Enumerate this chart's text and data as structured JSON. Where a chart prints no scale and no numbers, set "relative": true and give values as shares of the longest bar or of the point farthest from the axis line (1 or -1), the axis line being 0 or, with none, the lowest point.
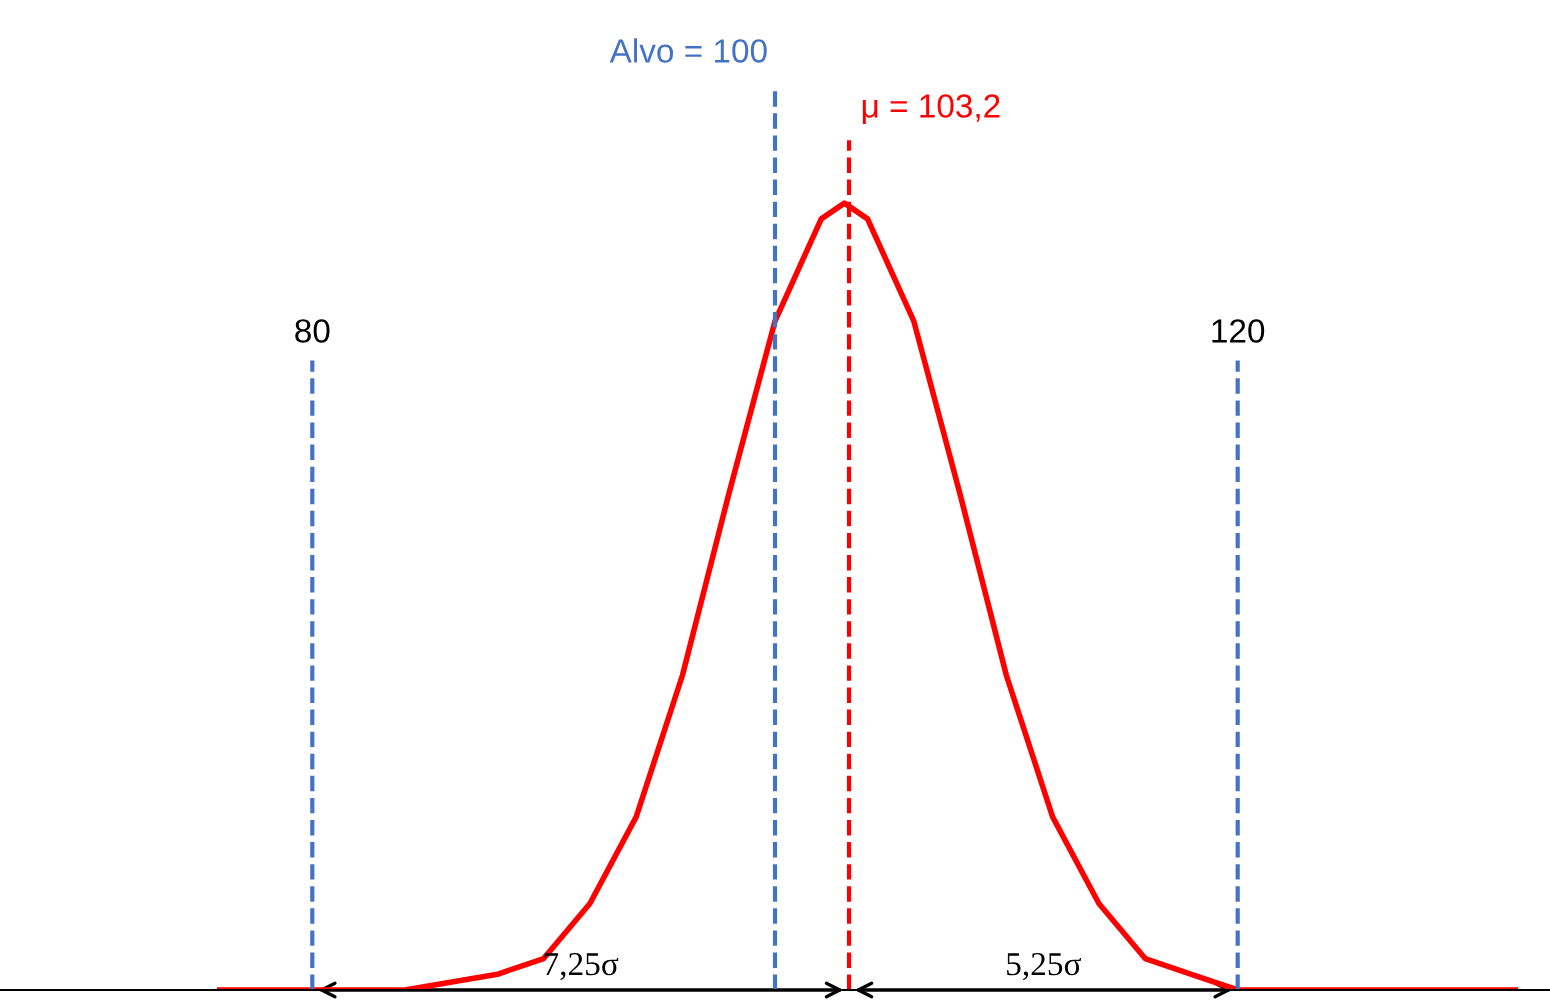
{
  "chart_data": {
    "type": "line",
    "relative": true,
    "x": [
      76,
      80,
      84,
      88,
      90,
      92,
      94,
      96,
      98,
      100,
      102,
      103,
      104,
      106,
      108,
      110,
      112,
      114,
      116,
      118,
      120,
      124,
      128,
      132
    ],
    "series": [
      {
        "color": "#ff0000",
        "values": [
          0,
          0,
          0,
          0.02,
          0.04,
          0.11,
          0.22,
          0.4,
          0.63,
          0.85,
          0.98,
          1,
          0.98,
          0.85,
          0.63,
          0.4,
          0.22,
          0.11,
          0.04,
          0.02,
          0,
          0,
          0,
          0
        ]
      }
    ],
    "xlim": [
      66.5,
      133.5
    ],
    "xticks": [
      80,
      120
    ],
    "tick_labels": "x",
    "marker": "none",
    "line_style": "solid",
    "ref_lines": [
      {
        "axis": "x",
        "value": 80,
        "color": "#4472c4",
        "line_style": "dashed"
      },
      {
        "axis": "x",
        "value": 100,
        "label": "Alvo = 100",
        "color": "#4472c4",
        "line_style": "dashed"
      },
      {
        "axis": "x",
        "value": 103.2,
        "label": "μ = 103,2",
        "color": "#ff0000",
        "line_style": "dashed"
      },
      {
        "axis": "x",
        "value": 120,
        "color": "#4472c4",
        "line_style": "dashed"
      }
    ],
    "annotations": [
      "7,25σ",
      "5,25σ"
    ]
  }
}
